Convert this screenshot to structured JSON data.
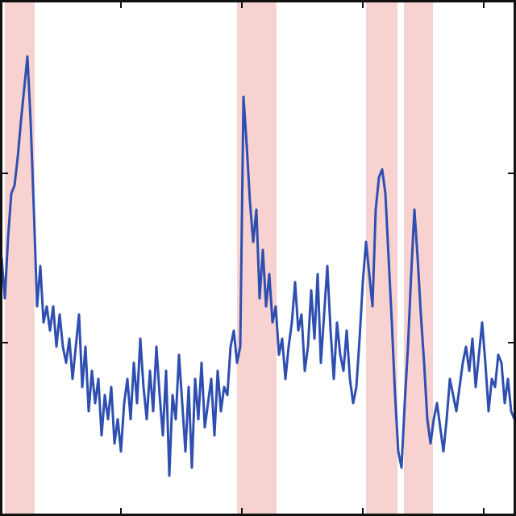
{
  "chart_data": {
    "type": "line",
    "title": "",
    "xlabel": "",
    "ylabel": "",
    "xlim": [
      0,
      640
    ],
    "ylim": [
      0,
      640
    ],
    "grid": false,
    "legend": "none",
    "x_ticks": [
      0,
      150,
      300,
      450,
      600
    ],
    "y_ticks": [
      215,
      425
    ],
    "colors": {
      "series": "#2f4fb0",
      "highlight": "#f2b4b0",
      "axis": "#111111"
    },
    "highlight_bands": [
      {
        "x0": 6,
        "x1": 43
      },
      {
        "x0": 294,
        "x1": 343
      },
      {
        "x0": 454,
        "x1": 493
      },
      {
        "x0": 501,
        "x1": 537
      }
    ],
    "series": [
      {
        "x": [
          2,
          6,
          10,
          14,
          18,
          22,
          26,
          30,
          34,
          38,
          42,
          46,
          50,
          54,
          58,
          62,
          66,
          70,
          74,
          78,
          82,
          86,
          90,
          94,
          98,
          102,
          106,
          110,
          114,
          118,
          122,
          126,
          130,
          134,
          138,
          142,
          146,
          150,
          154,
          158,
          162,
          166,
          170,
          174,
          178,
          182,
          186,
          190,
          194,
          198,
          202,
          206,
          210,
          214,
          218,
          222,
          226,
          230,
          234,
          238,
          242,
          246,
          250,
          254,
          258,
          262,
          266,
          270,
          274,
          278,
          282,
          286,
          290,
          294,
          298,
          302,
          306,
          310,
          314,
          318,
          322,
          326,
          330,
          334,
          338,
          342,
          346,
          350,
          354,
          358,
          362,
          366,
          370,
          374,
          378,
          382,
          386,
          390,
          394,
          398,
          402,
          406,
          410,
          414,
          418,
          422,
          426,
          430,
          434,
          438,
          442,
          446,
          450,
          454,
          458,
          462,
          466,
          470,
          474,
          478,
          482,
          486,
          490,
          494,
          498,
          502,
          506,
          510,
          514,
          518,
          522,
          526,
          530,
          534,
          538,
          542,
          546,
          550,
          554,
          558,
          562,
          566,
          570,
          574,
          578,
          582,
          586,
          590,
          594,
          598,
          602,
          606,
          610,
          614,
          618,
          622,
          626,
          630,
          634,
          638
        ],
        "y": [
          320,
          370,
          295,
          240,
          230,
          195,
          150,
          110,
          70,
          150,
          260,
          380,
          330,
          400,
          380,
          410,
          380,
          430,
          390,
          430,
          450,
          420,
          470,
          430,
          390,
          480,
          430,
          510,
          460,
          500,
          470,
          540,
          490,
          520,
          480,
          550,
          520,
          560,
          500,
          470,
          520,
          450,
          500,
          420,
          480,
          520,
          460,
          510,
          430,
          490,
          540,
          460,
          590,
          490,
          520,
          440,
          500,
          560,
          480,
          580,
          470,
          520,
          450,
          530,
          500,
          470,
          540,
          460,
          510,
          480,
          490,
          430,
          410,
          450,
          430,
          120,
          180,
          250,
          300,
          260,
          370,
          310,
          380,
          340,
          400,
          380,
          440,
          420,
          470,
          430,
          400,
          350,
          410,
          390,
          460,
          430,
          360,
          420,
          340,
          450,
          390,
          330,
          410,
          470,
          400,
          440,
          460,
          410,
          470,
          500,
          480,
          420,
          350,
          300,
          340,
          380,
          260,
          220,
          210,
          240,
          320,
          400,
          490,
          560,
          580,
          500,
          430,
          340,
          260,
          320,
          390,
          450,
          520,
          550,
          520,
          500,
          530,
          560,
          520,
          470,
          490,
          510,
          480,
          450,
          430,
          460,
          420,
          480,
          440,
          400,
          450,
          510,
          470,
          480,
          440,
          450,
          500,
          470,
          510,
          520
        ]
      }
    ]
  }
}
